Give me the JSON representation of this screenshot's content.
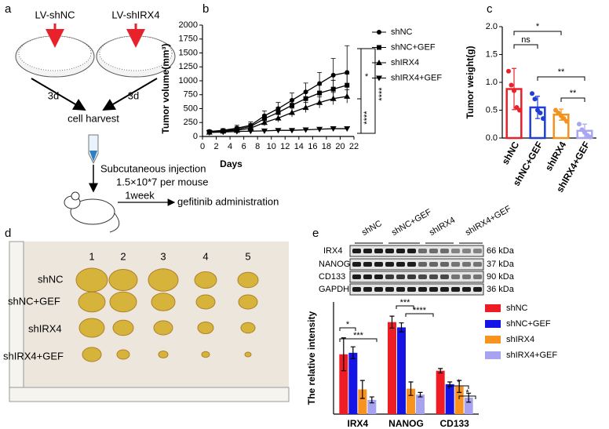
{
  "panel_labels": [
    "a",
    "b",
    "c",
    "d",
    "e"
  ],
  "schematic": {
    "vectors": [
      "LV-shNC",
      "LV-shIRX4"
    ],
    "durations": [
      "3d",
      "3d"
    ],
    "harvest": "cell harvest",
    "injection": "Subcutaneous injection",
    "dose": "1.5×10*7 per mouse",
    "interval": "1week",
    "treatment": "gefitinib administration"
  },
  "tumor_photo": {
    "columns": [
      1,
      2,
      3,
      4,
      5
    ],
    "rows": [
      "shNC",
      "shNC+GEF",
      "shIRX4",
      "shIRX4+GEF"
    ]
  },
  "western_blot": {
    "lanes": [
      "shNC",
      "shNC+GEF",
      "shIRX4",
      "shIRX4+GEF"
    ],
    "proteins": [
      "IRX4",
      "NANOG",
      "CD133",
      "GAPDH"
    ],
    "sizes": [
      "66 kDa",
      "37 kDa",
      "90 kDa",
      "36 kDa"
    ]
  },
  "chart_data": [
    {
      "type": "line",
      "x_label": "Days",
      "y_label": "Tumor volume(mm³)",
      "x": [
        1,
        3,
        5,
        7,
        9,
        11,
        13,
        15,
        17,
        19,
        21
      ],
      "series": [
        {
          "name": "shNC",
          "color": "#000000",
          "marker": "circle",
          "values": [
            90,
            110,
            150,
            200,
            370,
            500,
            650,
            800,
            950,
            1100,
            1150
          ],
          "errors": [
            20,
            30,
            50,
            60,
            90,
            110,
            130,
            160,
            200,
            300,
            480
          ]
        },
        {
          "name": "shNC+GEF",
          "color": "#000000",
          "marker": "square",
          "values": [
            80,
            100,
            130,
            180,
            320,
            430,
            560,
            680,
            780,
            850,
            920
          ],
          "errors": [
            15,
            25,
            40,
            50,
            70,
            90,
            100,
            120,
            140,
            160,
            200
          ]
        },
        {
          "name": "shIRX4",
          "color": "#000000",
          "marker": "triangle-up",
          "values": [
            75,
            95,
            110,
            150,
            250,
            330,
            430,
            520,
            610,
            680,
            720
          ],
          "errors": [
            15,
            20,
            30,
            40,
            60,
            70,
            80,
            90,
            100,
            110,
            120
          ]
        },
        {
          "name": "shIRX4+GEF",
          "color": "#000000",
          "marker": "triangle-down",
          "values": [
            70,
            80,
            90,
            95,
            100,
            110,
            110,
            120,
            130,
            140,
            140
          ],
          "errors": [
            10,
            10,
            15,
            15,
            20,
            20,
            25,
            25,
            30,
            30,
            35
          ]
        }
      ],
      "xlim": [
        0,
        22
      ],
      "xticks": [
        0,
        2,
        4,
        6,
        8,
        10,
        12,
        14,
        16,
        18,
        20,
        22
      ],
      "ylim": [
        0,
        2000
      ],
      "yticks": [
        0,
        250,
        500,
        750,
        1000,
        1250,
        1500,
        1750,
        2000
      ],
      "legend": "right",
      "annotations": [
        "*",
        "****",
        "****"
      ]
    },
    {
      "type": "bar",
      "y_label": "Tumor weight(g)",
      "categories": [
        "shNC",
        "shNC+GEF",
        "shIRX4",
        "shIRX4+GEF"
      ],
      "values": [
        0.88,
        0.55,
        0.42,
        0.13
      ],
      "errors": [
        0.37,
        0.2,
        0.1,
        0.12
      ],
      "colors": [
        "#e8212b",
        "#1f3fd6",
        "#f5921e",
        "#a9a6ef"
      ],
      "points": [
        [
          1.2,
          0.95,
          0.85,
          0.55,
          0.5
        ],
        [
          0.8,
          0.7,
          0.5,
          0.45,
          0.35
        ],
        [
          0.5,
          0.45,
          0.4,
          0.35,
          0.3
        ],
        [
          0.25,
          0.15,
          0.1,
          0.05,
          0.02
        ]
      ],
      "ylim": [
        0,
        2
      ],
      "yticks": [
        {
          "value": 0,
          "label": "0.0"
        },
        {
          "value": 0.5,
          "label": "0.5"
        },
        {
          "value": 1,
          "label": "1.0"
        },
        {
          "value": 1.5,
          "label": "1.5"
        },
        {
          "value": 2,
          "label": "2.0"
        }
      ],
      "annotations": [
        "ns",
        "*",
        "**",
        "**"
      ]
    },
    {
      "type": "bar",
      "y_label": "The relative intensity",
      "categories": [
        "IRX4",
        "NANOG",
        "CD133"
      ],
      "series": [
        {
          "name": "shNC",
          "color": "#ee1c25",
          "values": [
            0.8,
            1.23,
            0.58
          ],
          "errors": [
            0.22,
            0.08,
            0.03
          ]
        },
        {
          "name": "shNC+GEF",
          "color": "#1414e6",
          "values": [
            0.82,
            1.16,
            0.4
          ],
          "errors": [
            0.08,
            0.06,
            0.03
          ]
        },
        {
          "name": "shIRX4",
          "color": "#f7931e",
          "values": [
            0.33,
            0.34,
            0.37
          ],
          "errors": [
            0.12,
            0.09,
            0.08
          ]
        },
        {
          "name": "shIRX4+GEF",
          "color": "#a8a3f0",
          "values": [
            0.19,
            0.26,
            0.22
          ],
          "errors": [
            0.04,
            0.03,
            0.06
          ]
        }
      ],
      "ylim": [
        0,
        1.5
      ],
      "legend": "right",
      "annotations": [
        "*",
        "***",
        "***",
        "****",
        "*",
        "*"
      ]
    }
  ]
}
